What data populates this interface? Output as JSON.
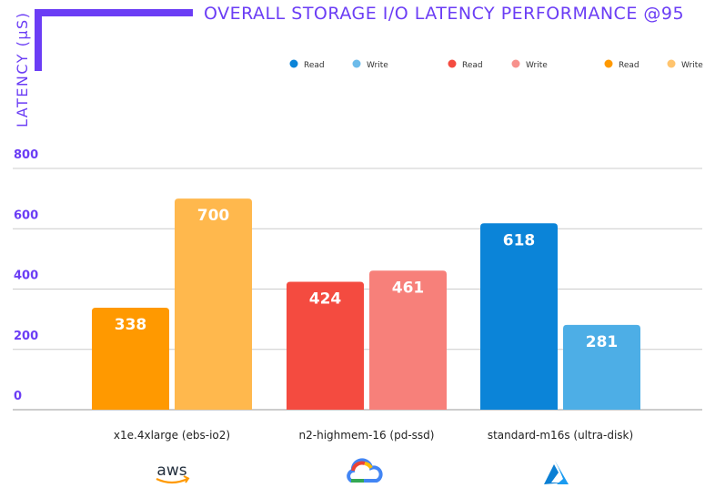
{
  "chart_data": {
    "type": "bar",
    "title": "OVERALL STORAGE I/O LATENCY PERFORMANCE @95",
    "xlabel": "",
    "ylabel": "LATENCY (µS)",
    "ylim": [
      0,
      800
    ],
    "yticks": [
      0,
      200,
      400,
      600,
      800
    ],
    "grid": true,
    "legend_position": "top",
    "categories": [
      "x1e.4xlarge (ebs-io2)",
      "n2-highmem-16 (pd-ssd)",
      "standard-m16s (ultra-disk)"
    ],
    "groups": [
      {
        "category": "x1e.4xlarge (ebs-io2)",
        "read": 338,
        "write": 700,
        "read_color": "#ff9900",
        "write_color": "#ffb84d"
      },
      {
        "category": "n2-highmem-16 (pd-ssd)",
        "read": 424,
        "write": 461,
        "read_color": "#f44b40",
        "write_color": "#f7807a"
      },
      {
        "category": "standard-m16s (ultra-disk)",
        "read": 618,
        "write": 281,
        "read_color": "#0b84d8",
        "write_color": "#4daee6"
      }
    ],
    "legend": [
      {
        "label": "Read",
        "color": "#0b84d8"
      },
      {
        "label": "Write",
        "color": "#6cbbea"
      },
      {
        "label": "Read",
        "color": "#f44b40"
      },
      {
        "label": "Write",
        "color": "#f7918c"
      },
      {
        "label": "Read",
        "color": "#ff9900"
      },
      {
        "label": "Write",
        "color": "#ffc46e"
      }
    ]
  },
  "logos": [
    {
      "name": "aws-logo",
      "text": "aws"
    },
    {
      "name": "google-cloud-icon"
    },
    {
      "name": "azure-icon"
    }
  ],
  "colors": {
    "accent": "#6b3df5",
    "grid": "#cccccc"
  }
}
